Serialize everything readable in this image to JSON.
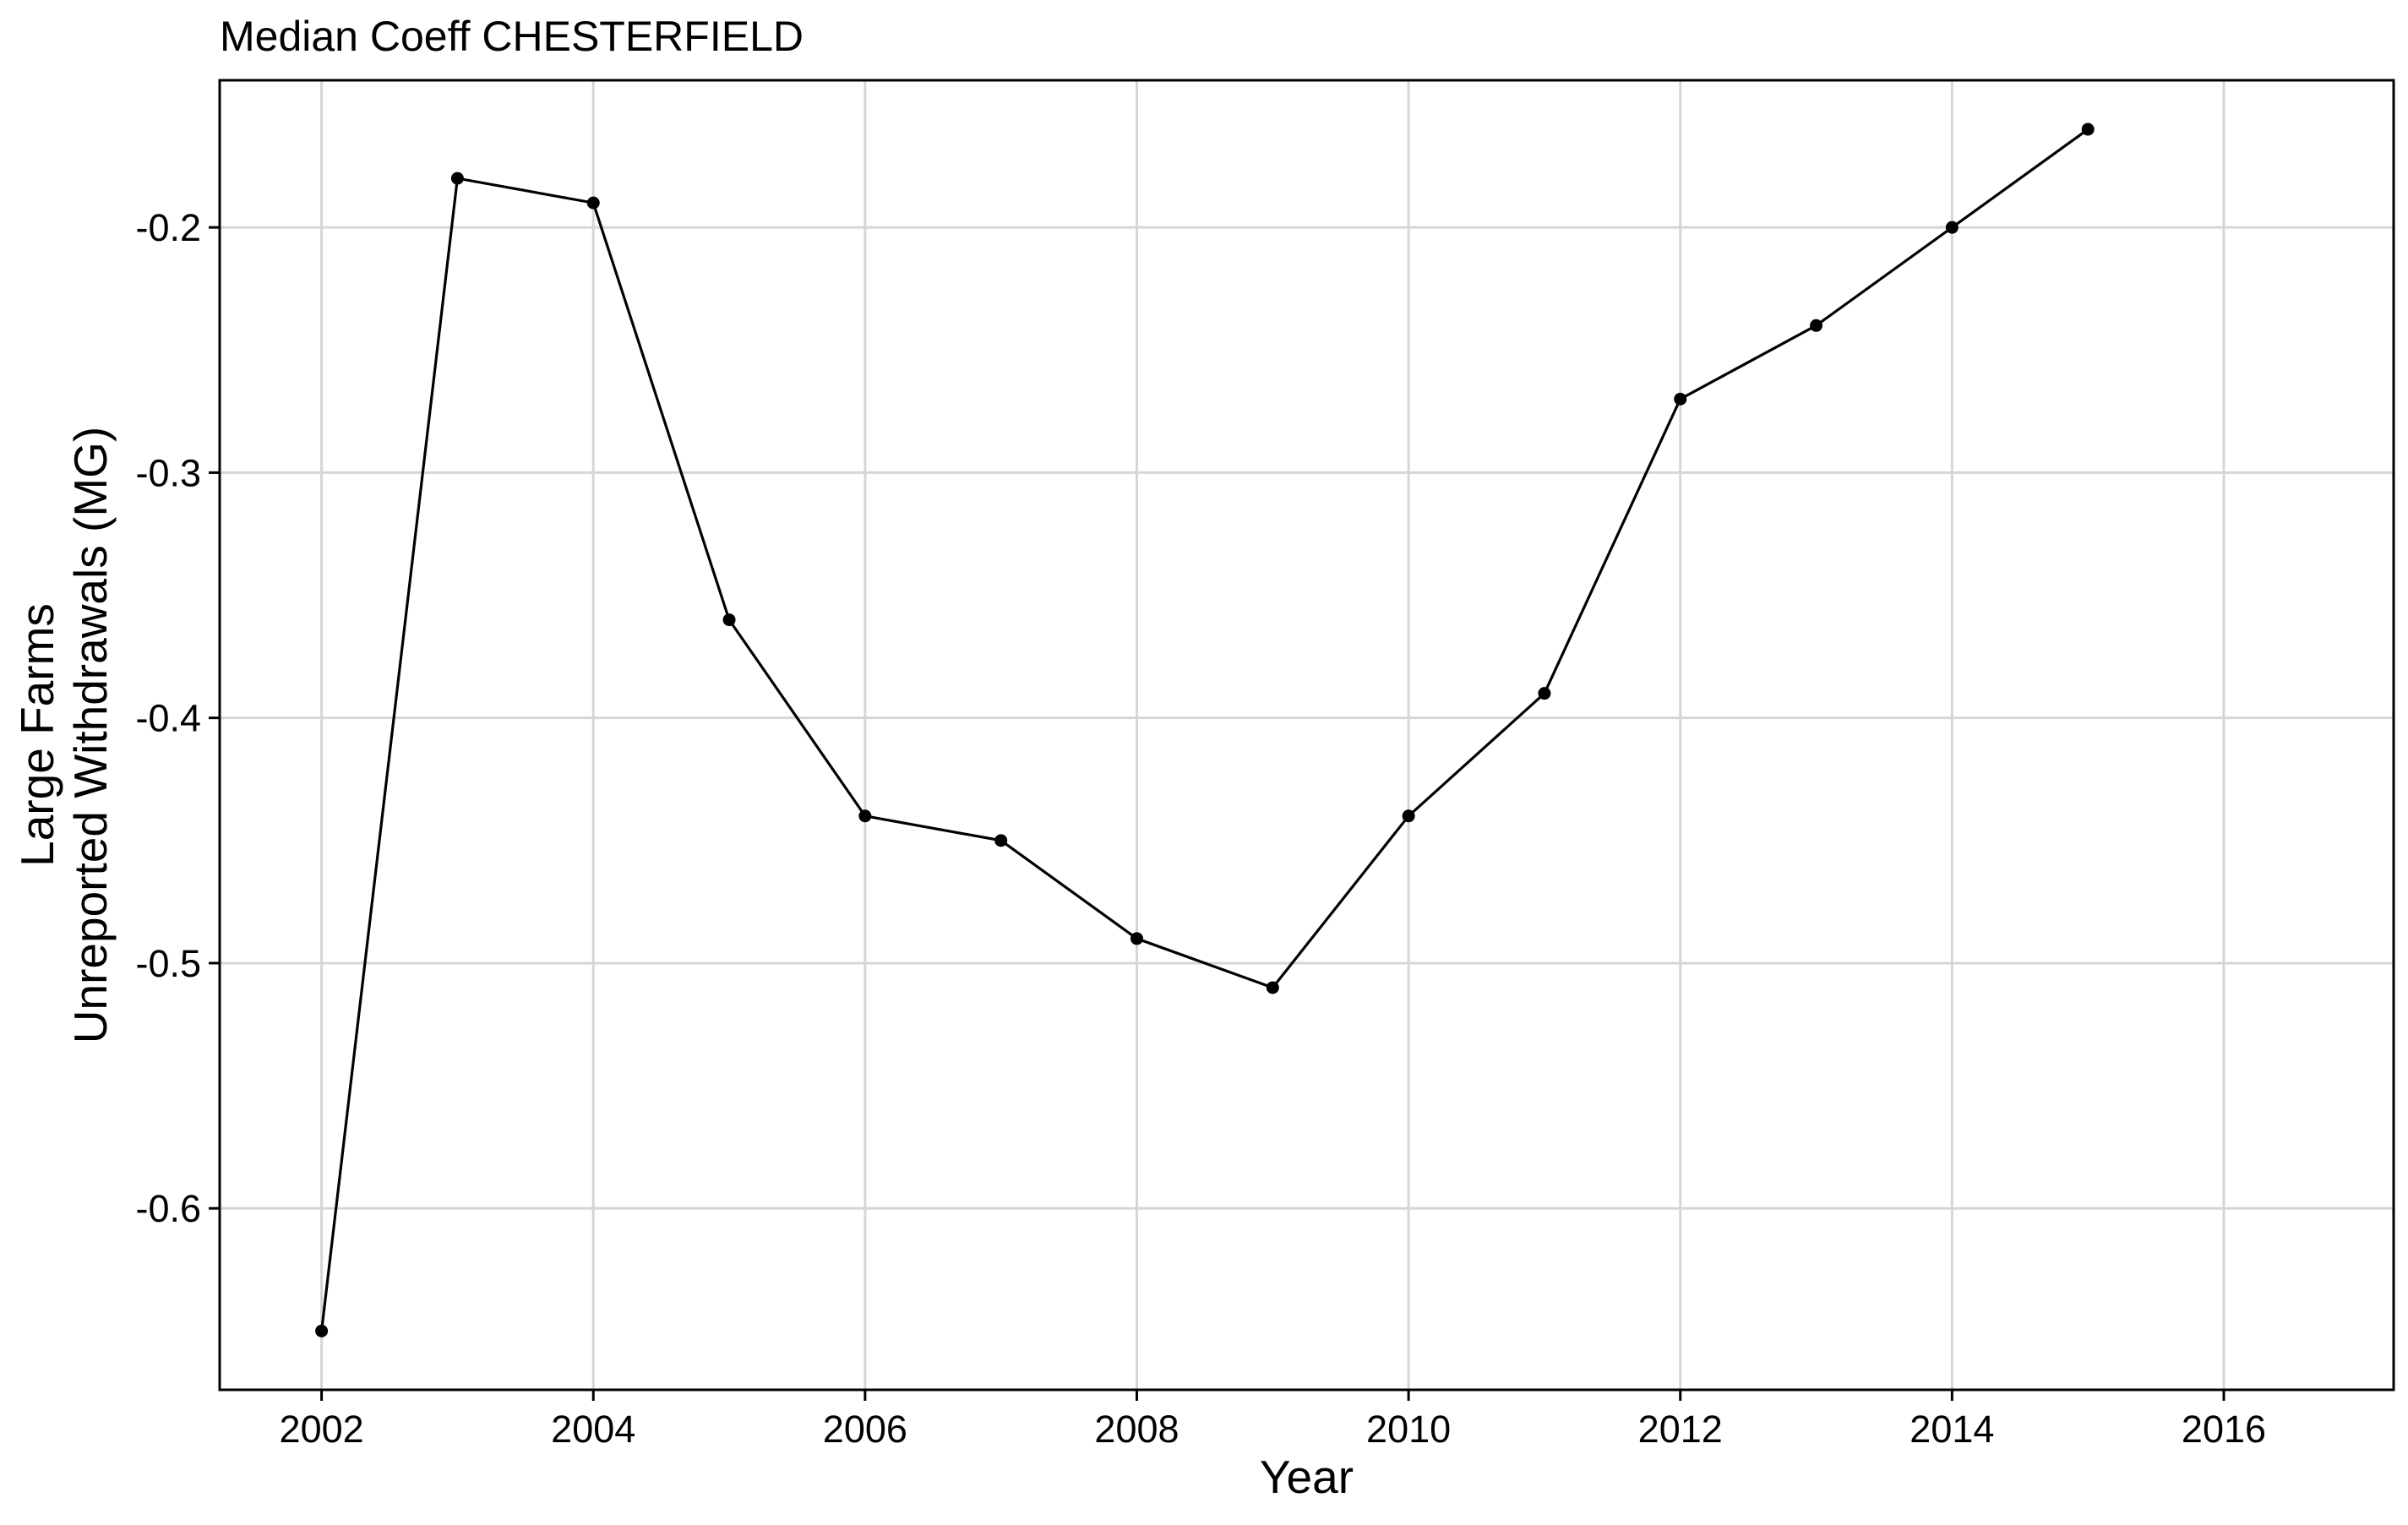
{
  "chart_data": {
    "type": "line",
    "title": "Median Coeff CHESTERFIELD",
    "xlabel": "Year",
    "ylabel_lines": [
      "Large Farms",
      "Unreported Withdrawals (MG)"
    ],
    "x": [
      2002,
      2003,
      2004,
      2005,
      2006,
      2007,
      2008,
      2009,
      2010,
      2011,
      2012,
      2013,
      2014,
      2015
    ],
    "y": [
      -0.65,
      -0.18,
      -0.19,
      -0.36,
      -0.44,
      -0.45,
      -0.49,
      -0.51,
      -0.44,
      -0.39,
      -0.27,
      -0.24,
      -0.2,
      -0.16
    ],
    "xlim": [
      2001.25,
      2017.25
    ],
    "ylim": [
      -0.674,
      -0.14
    ],
    "x_ticks": [
      2002,
      2004,
      2006,
      2008,
      2010,
      2012,
      2014,
      2016
    ],
    "y_ticks": [
      -0.6,
      -0.5,
      -0.4,
      -0.3,
      -0.2
    ],
    "y_tick_labels": [
      "-0.6",
      "-0.5",
      "-0.4",
      "-0.3",
      "-0.2"
    ],
    "grid": true,
    "legend": "none",
    "colors": {
      "line": "#000000",
      "grid": "#d6d6d6",
      "background": "#ffffff"
    }
  }
}
